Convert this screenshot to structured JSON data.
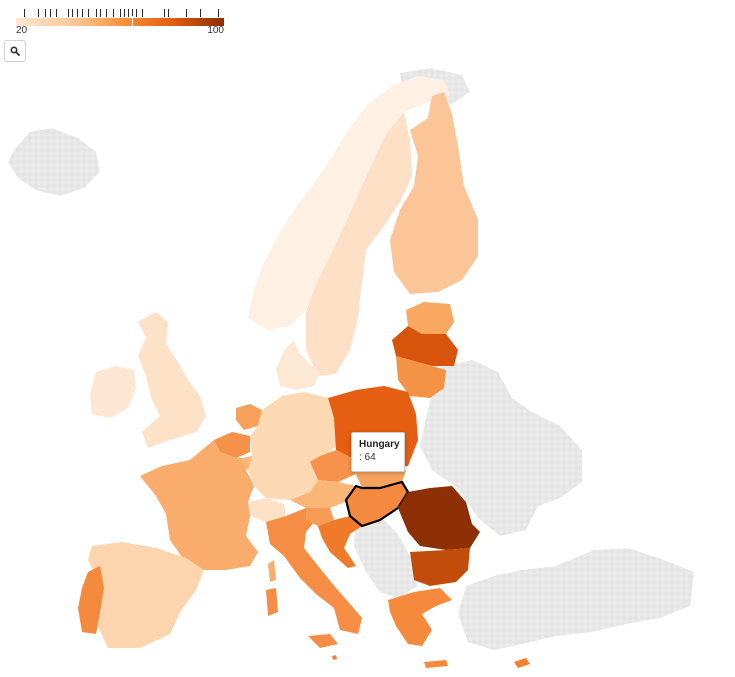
{
  "legend": {
    "min_label": "20",
    "max_label": "100",
    "scale_min": 20,
    "scale_max": 100,
    "colors": [
      "#fee7d2",
      "#fdc799",
      "#f8953f",
      "#e35d0f",
      "#8a2f05"
    ],
    "no_data_color": "#e6e6e6"
  },
  "zoom_button": {
    "icon": "search-icon"
  },
  "tooltip": {
    "country": "Hungary",
    "value_label": ": 64"
  },
  "map": {
    "highlighted_country": "Hungary",
    "countries": [
      {
        "name": "Iceland",
        "color": "#e6e6e6"
      },
      {
        "name": "Norway",
        "color": "#fef1e4"
      },
      {
        "name": "Sweden",
        "color": "#fde0c5"
      },
      {
        "name": "Finland",
        "color": "#fbc598"
      },
      {
        "name": "Estonia",
        "color": "#f9a862"
      },
      {
        "name": "Latvia",
        "color": "#d9540b"
      },
      {
        "name": "Lithuania",
        "color": "#f49346"
      },
      {
        "name": "Ireland",
        "color": "#fde7d3"
      },
      {
        "name": "United Kingdom",
        "color": "#fde2c8"
      },
      {
        "name": "Denmark",
        "color": "#fde8d4"
      },
      {
        "name": "Netherlands",
        "color": "#f6a05c"
      },
      {
        "name": "Belgium",
        "color": "#f4924a"
      },
      {
        "name": "Luxembourg",
        "color": "#f9b77c"
      },
      {
        "name": "Germany",
        "color": "#fcd8b3"
      },
      {
        "name": "Poland",
        "color": "#e65e12"
      },
      {
        "name": "Czechia",
        "color": "#f7924c"
      },
      {
        "name": "Slovakia",
        "color": "#f6a25f"
      },
      {
        "name": "Austria",
        "color": "#fab676"
      },
      {
        "name": "Switzerland",
        "color": "#fde2c8"
      },
      {
        "name": "France",
        "color": "#f9ac6c"
      },
      {
        "name": "Spain",
        "color": "#fcd4ae"
      },
      {
        "name": "Portugal",
        "color": "#f38a3e"
      },
      {
        "name": "Italy",
        "color": "#f58e44"
      },
      {
        "name": "Slovenia",
        "color": "#f69c57"
      },
      {
        "name": "Croatia",
        "color": "#ee7a2a"
      },
      {
        "name": "Hungary",
        "color": "#f38a40"
      },
      {
        "name": "Romania",
        "color": "#8e2f05"
      },
      {
        "name": "Bulgaria",
        "color": "#c24c0a"
      },
      {
        "name": "Greece",
        "color": "#f58a3c"
      },
      {
        "name": "Cyprus",
        "color": "#f5802f"
      },
      {
        "name": "Malta",
        "color": "#f5802f"
      },
      {
        "name": "Balkans (no data)",
        "color": "#e6e6e6"
      },
      {
        "name": "Belarus (no data)",
        "color": "#e6e6e6"
      },
      {
        "name": "Ukraine (no data)",
        "color": "#e6e6e6"
      },
      {
        "name": "Moldova (no data)",
        "color": "#e6e6e6"
      },
      {
        "name": "Turkey (no data)",
        "color": "#e6e6e6"
      },
      {
        "name": "Russia (no data)",
        "color": "#e6e6e6"
      }
    ]
  }
}
